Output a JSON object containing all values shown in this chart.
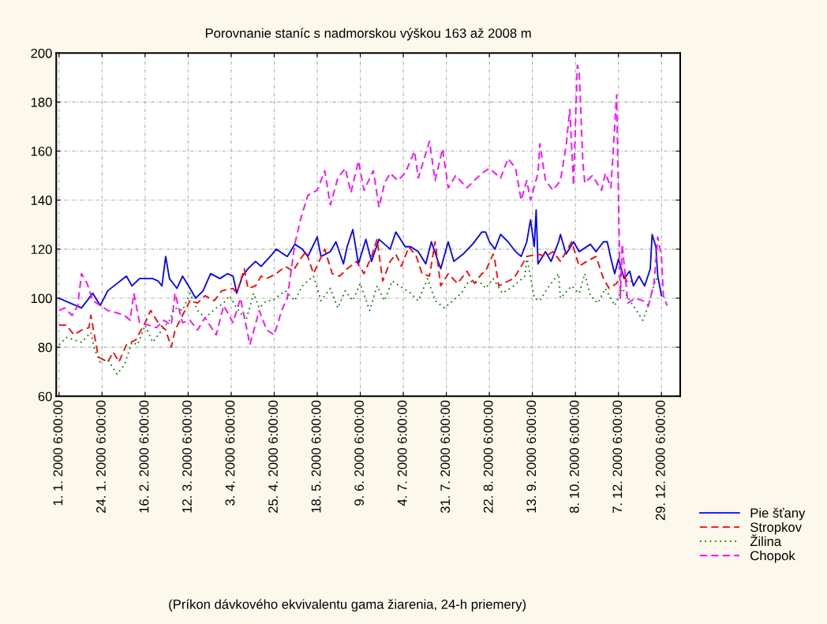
{
  "chart_data": {
    "type": "line",
    "title": "Porovnanie staníc s nadmorskou výškou 163 až 2008 m",
    "annotations": [
      "(Príkon dávkového ekvivalentu gama žiarenia, 24-h priemery)"
    ],
    "ylim": [
      60,
      200
    ],
    "yticks": [
      60,
      80,
      100,
      120,
      140,
      160,
      180,
      200
    ],
    "categories": [
      "1. 1. 2000 6:00:00",
      null,
      null,
      null,
      null,
      null,
      null,
      null,
      null,
      null,
      null,
      null,
      null,
      null,
      null,
      null,
      null,
      null,
      null,
      null,
      null,
      null,
      null,
      "24. 1. 2000 6:00:00",
      null,
      null,
      null,
      null,
      null,
      null,
      null,
      null,
      null,
      null,
      null,
      null,
      null,
      null,
      null,
      null,
      null,
      null,
      null,
      null,
      null,
      null,
      "16. 2. 2000 6:00:00",
      null,
      null,
      null,
      null,
      null,
      null,
      null,
      null,
      null,
      null,
      null,
      null,
      null,
      null,
      null,
      null,
      null,
      null,
      null,
      null,
      null,
      null,
      "12. 3. 2000 6:00:00",
      null,
      null,
      null,
      null,
      null,
      null,
      null,
      null,
      null,
      null,
      null,
      null,
      null,
      null,
      null,
      null,
      null,
      null,
      null,
      null,
      null,
      null,
      "3. 4. 2000 6:00:00",
      null,
      null,
      null,
      null,
      null,
      null,
      null,
      null,
      null,
      null,
      null,
      null,
      null,
      null,
      null,
      null,
      null,
      null,
      null,
      null,
      null,
      null,
      "25. 4. 2000 6:00:00",
      null,
      null,
      null,
      null,
      null,
      null,
      null,
      null,
      null,
      null,
      null,
      null,
      null,
      null,
      null,
      null,
      null,
      null,
      null,
      null,
      null,
      null,
      "18. 5. 2000 6:00:00",
      null,
      null,
      null,
      null,
      null,
      null,
      null,
      null,
      null,
      null,
      null,
      null,
      null,
      null,
      null,
      null,
      null,
      null,
      null,
      null,
      null,
      null,
      "9. 6. 2000 6:00:00",
      null,
      null,
      null,
      null,
      null,
      null,
      null,
      null,
      null,
      null,
      null,
      null,
      null,
      null,
      null,
      null,
      null,
      null,
      null,
      null,
      null,
      null,
      "4. 7. 2000 6:00:00",
      null,
      null,
      null,
      null,
      null,
      null,
      null,
      null,
      null,
      null,
      null,
      null,
      null,
      null,
      null,
      null,
      null,
      null,
      null,
      null,
      null,
      null,
      "31. 7. 2000 6:00:00",
      null,
      null,
      null,
      null,
      null,
      null,
      null,
      null,
      null,
      null,
      null,
      null,
      null,
      null,
      null,
      null,
      null,
      null,
      null,
      null,
      null,
      null,
      "22. 8. 2000 6:00:00",
      null,
      null,
      null,
      null,
      null,
      null,
      null,
      null,
      null,
      null,
      null,
      null,
      null,
      null,
      null,
      null,
      null,
      null,
      null,
      null,
      null,
      null,
      "13. 9. 2000 6:00:00",
      null,
      null,
      null,
      null,
      null,
      null,
      null,
      null,
      null,
      null,
      null,
      null,
      null,
      null,
      null,
      null,
      null,
      null,
      null,
      null,
      null,
      null,
      "8. 10. 2000 6:00:00",
      null,
      null,
      null,
      null,
      null,
      null,
      null,
      null,
      null,
      null,
      null,
      null,
      null,
      null,
      null,
      null,
      null,
      null,
      null,
      null,
      null,
      null,
      "7. 12. 2000 6:00:00",
      null,
      null,
      null,
      null,
      null,
      null,
      null,
      null,
      null,
      null,
      null,
      null,
      null,
      null,
      null,
      null,
      null,
      null,
      null,
      null,
      null,
      null,
      "29. 12. 2000 6:00:00",
      null,
      null,
      null
    ],
    "grid": true,
    "legend": "right",
    "series": [
      {
        "name": "Pie šťany",
        "color": "#0000ff",
        "line_style": "solid",
        "values": [
          100,
          null,
          null,
          null,
          null,
          null,
          null,
          null,
          null,
          null,
          null,
          null,
          96,
          null,
          null,
          null,
          null,
          null,
          102,
          null,
          null,
          null,
          97,
          null,
          null,
          null,
          103,
          null,
          null,
          null,
          null,
          106,
          null,
          null,
          null,
          null,
          109,
          null,
          null,
          105,
          null,
          null,
          null,
          108,
          null,
          null,
          null,
          null,
          null,
          null,
          108,
          null,
          null,
          107,
          null,
          105,
          null,
          117,
          null,
          108,
          null,
          null,
          null,
          104,
          null,
          null,
          109,
          null,
          null,
          null,
          104,
          null,
          null,
          100,
          null,
          null,
          null,
          103,
          null,
          null,
          null,
          110,
          null,
          null,
          null,
          null,
          108,
          null,
          null,
          null,
          110,
          null,
          null,
          109,
          null,
          102,
          null,
          null,
          109,
          null,
          null,
          112,
          null,
          null,
          null,
          115,
          null,
          null,
          113,
          null,
          null,
          null,
          null,
          null,
          118,
          null,
          120,
          null,
          null,
          null,
          null,
          null,
          117,
          null,
          null,
          null,
          122,
          null,
          null,
          null,
          120,
          null,
          null,
          117,
          null,
          null,
          null,
          null,
          125,
          null,
          117,
          null,
          null,
          null,
          null,
          119,
          null,
          null,
          123,
          null,
          null,
          null,
          114,
          null,
          121,
          null,
          null,
          128,
          null,
          null,
          114,
          null,
          null,
          null,
          124,
          null,
          null,
          115,
          null,
          null,
          null,
          124,
          null,
          null,
          null,
          null,
          null,
          120,
          null,
          null,
          127,
          null,
          null,
          null,
          null,
          121,
          null,
          null,
          121,
          null,
          null,
          null,
          119,
          null,
          null,
          null,
          114,
          null,
          null,
          123,
          null,
          null,
          null,
          null,
          112,
          null,
          null,
          null,
          123,
          null,
          null,
          115,
          null,
          null,
          null,
          null,
          118,
          null,
          null,
          null,
          null,
          122,
          null,
          null,
          null,
          null,
          127,
          null,
          127,
          null,
          123,
          null,
          null,
          120,
          null,
          null,
          126,
          null,
          null,
          null,
          123,
          null,
          null,
          null,
          119,
          null,
          null,
          117,
          null,
          null,
          123,
          null,
          132,
          null,
          121,
          136,
          114,
          null,
          null,
          null,
          119,
          null,
          null,
          115,
          null,
          null,
          null,
          123,
          126,
          null,
          null,
          118,
          null,
          null,
          null,
          123,
          null,
          null,
          119,
          null,
          null,
          null,
          null,
          null,
          122,
          null,
          null,
          119,
          null,
          null,
          null,
          123,
          null,
          123,
          null,
          116,
          null,
          110,
          null,
          116,
          null,
          null,
          108,
          null,
          null,
          111,
          null,
          105,
          null,
          null,
          109,
          null,
          null,
          105,
          null,
          null,
          112,
          126,
          null,
          121,
          109,
          null,
          101,
          null,
          null,
          null
        ]
      },
      {
        "name": "Stropkov",
        "color": "#ff0000",
        "line_style": "dashed",
        "values": [
          89,
          null,
          null,
          null,
          89,
          null,
          null,
          null,
          85,
          null,
          null,
          null,
          87,
          null,
          null,
          null,
          88,
          93,
          null,
          null,
          null,
          76,
          null,
          null,
          null,
          null,
          74,
          null,
          null,
          78,
          null,
          null,
          74,
          null,
          null,
          null,
          81,
          null,
          null,
          null,
          null,
          83,
          null,
          null,
          null,
          null,
          90,
          null,
          null,
          95,
          null,
          null,
          null,
          90,
          null,
          null,
          null,
          87,
          null,
          null,
          80,
          null,
          87,
          null,
          null,
          null,
          93,
          null,
          null,
          null,
          99,
          null,
          null,
          null,
          98,
          null,
          null,
          null,
          101,
          null,
          null,
          null,
          null,
          99,
          null,
          null,
          null,
          103,
          null,
          null,
          null,
          null,
          null,
          104,
          null,
          102,
          null,
          null,
          null,
          112,
          null,
          104,
          null,
          null,
          null,
          105,
          null,
          null,
          109,
          null,
          null,
          108,
          null,
          null,
          null,
          null,
          110,
          null,
          null,
          null,
          null,
          113,
          null,
          null,
          null,
          111,
          null,
          null,
          null,
          116,
          null,
          null,
          119,
          null,
          null,
          null,
          110,
          null,
          null,
          null,
          null,
          null,
          120,
          null,
          null,
          null,
          110,
          null,
          null,
          null,
          109,
          null,
          null,
          null,
          112,
          null,
          null,
          null,
          null,
          115,
          null,
          null,
          null,
          110,
          null,
          null,
          null,
          117,
          null,
          null,
          124,
          null,
          null,
          107,
          null,
          null,
          null,
          115,
          null,
          null,
          118,
          null,
          null,
          113,
          null,
          null,
          null,
          121,
          null,
          null,
          null,
          117,
          null,
          null,
          110,
          null,
          null,
          null,
          109,
          null,
          null,
          123,
          null,
          null,
          105,
          null,
          null,
          null,
          110,
          null,
          null,
          null,
          null,
          106,
          null,
          null,
          null,
          null,
          111,
          null,
          null,
          null,
          106,
          null,
          null,
          null,
          110,
          null,
          111,
          null,
          null,
          null,
          118,
          115,
          null,
          105,
          null,
          null,
          null,
          null,
          107,
          null,
          null,
          108,
          null,
          null,
          null,
          113,
          null,
          null,
          117,
          null,
          null,
          null,
          null,
          null,
          118,
          null,
          null,
          null,
          117,
          null,
          null,
          null,
          119,
          null,
          null,
          null,
          115,
          null,
          null,
          null,
          null,
          null,
          123,
          null,
          null,
          null,
          113,
          null,
          null,
          null,
          115,
          null,
          null,
          null,
          null,
          117,
          null,
          null,
          null,
          108,
          null,
          null,
          104,
          null,
          null,
          null,
          106,
          null,
          null,
          111,
          null,
          null,
          106,
          null,
          107,
          null,
          null,
          null,
          null,
          null,
          null,
          null,
          null,
          null,
          null,
          null,
          null,
          null,
          null,
          null,
          null,
          null,
          null,
          null
        ]
      },
      {
        "name": "Žilina",
        "color": "#008000",
        "line_style": "dotted",
        "values": [
          81,
          null,
          null,
          null,
          84,
          null,
          null,
          null,
          83,
          null,
          null,
          null,
          82,
          null,
          null,
          null,
          null,
          86,
          null,
          79,
          null,
          null,
          74,
          null,
          null,
          null,
          75,
          null,
          null,
          null,
          null,
          69,
          null,
          null,
          null,
          73,
          null,
          null,
          null,
          82,
          null,
          null,
          81,
          null,
          null,
          null,
          89,
          null,
          null,
          null,
          82,
          null,
          null,
          null,
          null,
          87,
          null,
          null,
          null,
          91,
          null,
          null,
          96,
          null,
          null,
          null,
          95,
          null,
          null,
          null,
          102,
          null,
          null,
          null,
          95,
          null,
          null,
          null,
          92,
          null,
          null,
          null,
          null,
          null,
          96,
          null,
          null,
          null,
          98,
          null,
          null,
          101,
          null,
          null,
          null,
          96,
          null,
          null,
          null,
          null,
          91,
          null,
          null,
          null,
          102,
          null,
          null,
          96,
          null,
          null,
          null,
          99,
          null,
          null,
          99,
          null,
          null,
          null,
          null,
          null,
          null,
          103,
          null,
          null,
          null,
          null,
          99,
          null,
          null,
          null,
          105,
          null,
          null,
          null,
          null,
          null,
          109,
          null,
          null,
          null,
          99,
          null,
          null,
          null,
          null,
          104,
          null,
          null,
          null,
          96,
          null,
          null,
          null,
          103,
          null,
          null,
          null,
          99,
          null,
          null,
          null,
          106,
          null,
          null,
          null,
          null,
          95,
          null,
          null,
          null,
          105,
          null,
          null,
          null,
          99,
          null,
          null,
          null,
          107,
          null,
          null,
          null,
          null,
          null,
          104,
          null,
          null,
          null,
          102,
          null,
          null,
          null,
          99,
          null,
          null,
          null,
          null,
          108,
          null,
          null,
          null,
          99,
          null,
          null,
          null,
          null,
          96,
          null,
          null,
          null,
          null,
          null,
          null,
          null,
          null,
          102,
          null,
          null,
          null,
          107,
          null,
          null,
          null,
          null,
          null,
          null,
          106,
          null,
          104,
          null,
          null,
          null,
          108,
          null,
          null,
          null,
          null,
          102,
          null,
          null,
          null,
          null,
          null,
          105,
          null,
          null,
          null,
          null,
          null,
          109,
          117,
          null,
          null,
          null,
          100,
          null,
          null,
          99,
          null,
          null,
          null,
          104,
          null,
          null,
          null,
          null,
          null,
          110,
          100,
          null,
          null,
          null,
          null,
          null,
          105,
          null,
          null,
          null,
          102,
          null,
          null,
          110,
          null,
          null,
          101,
          null,
          null,
          null,
          98,
          null,
          null,
          null,
          104,
          null,
          null,
          null,
          null,
          97,
          null,
          null,
          null,
          104,
          null,
          null,
          null,
          null,
          98,
          null,
          null,
          null,
          null,
          null,
          91,
          null,
          null,
          97,
          null,
          null,
          null,
          108,
          null,
          107,
          null,
          null,
          null,
          null
        ]
      },
      {
        "name": "Chopok",
        "color": "#ff00ff",
        "line_style": "dashed",
        "values": [
          95,
          null,
          null,
          96,
          null,
          null,
          null,
          93,
          null,
          null,
          97,
          null,
          110,
          null,
          null,
          106,
          null,
          null,
          99,
          null,
          null,
          null,
          97,
          null,
          null,
          null,
          95,
          null,
          null,
          null,
          null,
          94,
          null,
          null,
          null,
          93,
          null,
          null,
          91,
          null,
          102,
          null,
          null,
          90,
          null,
          null,
          null,
          null,
          89,
          null,
          null,
          null,
          88,
          null,
          null,
          null,
          91,
          null,
          null,
          null,
          89,
          null,
          102,
          null,
          null,
          null,
          90,
          null,
          null,
          null,
          91,
          null,
          null,
          null,
          87,
          null,
          null,
          null,
          92,
          null,
          null,
          null,
          null,
          null,
          85,
          null,
          null,
          null,
          97,
          null,
          null,
          null,
          null,
          90,
          null,
          null,
          null,
          100,
          null,
          null,
          null,
          null,
          81,
          null,
          null,
          null,
          null,
          95,
          null,
          null,
          null,
          87,
          null,
          null,
          null,
          85,
          null,
          null,
          null,
          95,
          null,
          null,
          100,
          null,
          null,
          null,
          122,
          null,
          null,
          132,
          null,
          null,
          null,
          142,
          null,
          null,
          null,
          null,
          144,
          null,
          null,
          null,
          152,
          null,
          null,
          138,
          null,
          null,
          null,
          149,
          null,
          null,
          null,
          153,
          null,
          null,
          143,
          null,
          null,
          null,
          156,
          null,
          null,
          144,
          null,
          null,
          null,
          null,
          152,
          null,
          null,
          137,
          null,
          null,
          147,
          null,
          null,
          151,
          null,
          null,
          null,
          148,
          null,
          null,
          null,
          151,
          null,
          null,
          null,
          null,
          160,
          null,
          149,
          null,
          null,
          null,
          null,
          null,
          164,
          null,
          null,
          148,
          null,
          null,
          null,
          161,
          null,
          null,
          145,
          null,
          null,
          null,
          150,
          null,
          null,
          null,
          null,
          null,
          145,
          null,
          null,
          null,
          null,
          null,
          null,
          null,
          151,
          null,
          null,
          null,
          153,
          null,
          null,
          null,
          null,
          null,
          149,
          null,
          null,
          null,
          157,
          null,
          null,
          null,
          153,
          null,
          null,
          140,
          null,
          null,
          148,
          null,
          140,
          null,
          null,
          null,
          151,
          163,
          null,
          null,
          148,
          null,
          null,
          null,
          144,
          null,
          null,
          null,
          148,
          null,
          null,
          162,
          null,
          177,
          null,
          146,
          null,
          195,
          193,
          null,
          155,
          147,
          null,
          null,
          null,
          150,
          null,
          null,
          null,
          null,
          144,
          null,
          151,
          null,
          null,
          145,
          null,
          null,
          183,
          null,
          100,
          122,
          null,
          null,
          98,
          null,
          null,
          null,
          100,
          null,
          null,
          null,
          99,
          null,
          null,
          97,
          null,
          null,
          106,
          null,
          125,
          null,
          117,
          101,
          null,
          97
        ]
      }
    ]
  }
}
